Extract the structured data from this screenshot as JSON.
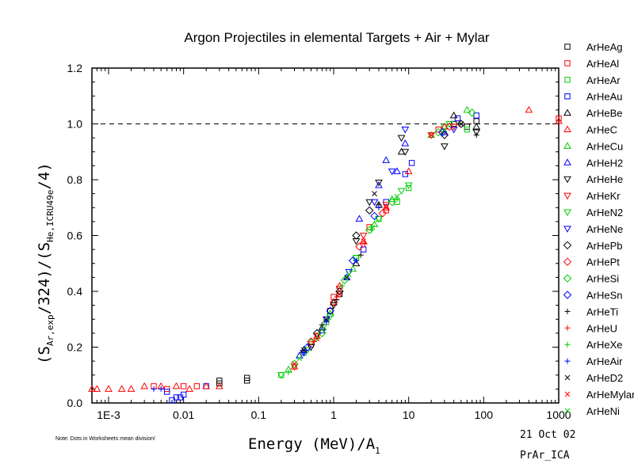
{
  "chart_data": {
    "type": "scatter",
    "title": "Argon Projectiles in elemental Targets + Air + Mylar",
    "xlabel": {
      "text": "Energy (MeV)/A",
      "sub": "1"
    },
    "ylabel": {
      "p1": "(S",
      "s1": "Ar,exp",
      "p2": "/324)/(S",
      "s2": "He,ICRU49e",
      "p3": "/4)"
    },
    "x_scale": "log",
    "xlim": [
      0.0006,
      1000
    ],
    "ylim": [
      0,
      1.2
    ],
    "x_ticks": [
      {
        "value": 0.001,
        "label": "1E-3"
      },
      {
        "value": 0.01,
        "label": "0.01"
      },
      {
        "value": 0.1,
        "label": "0.1"
      },
      {
        "value": 1,
        "label": "1"
      },
      {
        "value": 10,
        "label": "10"
      },
      {
        "value": 100,
        "label": "100"
      },
      {
        "value": 1000,
        "label": "1000"
      }
    ],
    "y_ticks": [
      {
        "value": 0.0,
        "label": "0.0"
      },
      {
        "value": 0.2,
        "label": "0.2"
      },
      {
        "value": 0.4,
        "label": "0.4"
      },
      {
        "value": 0.6,
        "label": "0.6"
      },
      {
        "value": 0.8,
        "label": "0.8"
      },
      {
        "value": 1.0,
        "label": "1.0"
      },
      {
        "value": 1.2,
        "label": "1.2"
      }
    ],
    "reference_line": {
      "y": 1.0,
      "style": "dashed"
    },
    "grid": false,
    "legend_position": "right",
    "series": [
      {
        "name": "ArHeAg",
        "marker": "square",
        "color": "#000000",
        "points": [
          [
            0.03,
            0.08
          ],
          [
            0.07,
            0.08
          ],
          [
            0.07,
            0.09
          ],
          [
            0.03,
            0.07
          ],
          [
            0.9,
            0.33
          ],
          [
            1.2,
            0.39
          ],
          [
            40,
            1.0
          ],
          [
            60,
            0.99
          ],
          [
            80,
            1.01
          ]
        ]
      },
      {
        "name": "ArHeAl",
        "marker": "square",
        "color": "#ff0000",
        "points": [
          [
            0.004,
            0.06
          ],
          [
            0.006,
            0.05
          ],
          [
            0.01,
            0.06
          ],
          [
            0.015,
            0.06
          ],
          [
            0.5,
            0.21
          ],
          [
            1.0,
            0.38
          ],
          [
            3.0,
            0.63
          ],
          [
            5.0,
            0.69
          ],
          [
            25,
            0.98
          ],
          [
            1000,
            1.02
          ]
        ]
      },
      {
        "name": "ArHeAr",
        "marker": "square",
        "color": "#00cc00",
        "points": [
          [
            0.2,
            0.1
          ],
          [
            0.4,
            0.18
          ],
          [
            0.8,
            0.29
          ],
          [
            2.0,
            0.52
          ],
          [
            4.0,
            0.66
          ],
          [
            7.0,
            0.72
          ],
          [
            10,
            0.77
          ],
          [
            30,
            0.99
          ],
          [
            60,
            0.98
          ]
        ]
      },
      {
        "name": "ArHeAu",
        "marker": "square",
        "color": "#0000ff",
        "points": [
          [
            0.007,
            0.01
          ],
          [
            0.008,
            0.02
          ],
          [
            0.009,
            0.02
          ],
          [
            0.01,
            0.03
          ],
          [
            0.006,
            0.04
          ],
          [
            0.02,
            0.06
          ],
          [
            2.5,
            0.55
          ],
          [
            5,
            0.72
          ],
          [
            9,
            0.82
          ],
          [
            11,
            0.86
          ],
          [
            80,
            1.03
          ],
          [
            45,
            1.02
          ]
        ]
      },
      {
        "name": "ArHeBe",
        "marker": "triangle-up",
        "color": "#000000",
        "points": [
          [
            0.4,
            0.19
          ],
          [
            0.7,
            0.27
          ],
          [
            1.0,
            0.36
          ],
          [
            2.0,
            0.5
          ],
          [
            4.0,
            0.71
          ],
          [
            8,
            0.9
          ],
          [
            40,
            1.03
          ],
          [
            80,
            0.99
          ]
        ]
      },
      {
        "name": "ArHeC",
        "marker": "triangle-up",
        "color": "#ff0000",
        "points": [
          [
            0.0006,
            0.05
          ],
          [
            0.0007,
            0.05
          ],
          [
            0.001,
            0.05
          ],
          [
            0.0015,
            0.05
          ],
          [
            0.002,
            0.05
          ],
          [
            0.003,
            0.06
          ],
          [
            0.005,
            0.06
          ],
          [
            0.008,
            0.06
          ],
          [
            0.012,
            0.05
          ],
          [
            0.02,
            0.06
          ],
          [
            0.03,
            0.06
          ],
          [
            0.3,
            0.13
          ],
          [
            0.6,
            0.24
          ],
          [
            1.2,
            0.42
          ],
          [
            2.5,
            0.58
          ],
          [
            5,
            0.7
          ],
          [
            10,
            0.83
          ],
          [
            30,
            0.99
          ],
          [
            400,
            1.05
          ],
          [
            1000,
            1.01
          ]
        ]
      },
      {
        "name": "ArHeCu",
        "marker": "triangle-up",
        "color": "#00cc00",
        "points": [
          [
            0.25,
            0.12
          ],
          [
            0.5,
            0.22
          ],
          [
            0.9,
            0.32
          ],
          [
            1.8,
            0.48
          ],
          [
            3.5,
            0.64
          ],
          [
            6,
            0.73
          ],
          [
            20,
            0.96
          ],
          [
            60,
            1.05
          ]
        ]
      },
      {
        "name": "ArHeH2",
        "marker": "triangle-up",
        "color": "#0000ff",
        "points": [
          [
            0.35,
            0.17
          ],
          [
            0.7,
            0.26
          ],
          [
            1.5,
            0.45
          ],
          [
            2.2,
            0.66
          ],
          [
            4,
            0.78
          ],
          [
            5,
            0.87
          ],
          [
            7,
            0.83
          ],
          [
            9,
            0.93
          ],
          [
            30,
            0.97
          ]
        ]
      },
      {
        "name": "ArHeHe",
        "marker": "triangle-down",
        "color": "#000000",
        "points": [
          [
            0.5,
            0.2
          ],
          [
            1.0,
            0.35
          ],
          [
            2.0,
            0.58
          ],
          [
            3.0,
            0.72
          ],
          [
            4.0,
            0.79
          ],
          [
            8,
            0.95
          ],
          [
            9,
            0.9
          ],
          [
            30,
            0.92
          ],
          [
            80,
            0.97
          ]
        ]
      },
      {
        "name": "ArHeKr",
        "marker": "triangle-down",
        "color": "#ff0000",
        "points": [
          [
            0.3,
            0.13
          ],
          [
            0.6,
            0.24
          ],
          [
            1.2,
            0.41
          ],
          [
            2.5,
            0.6
          ],
          [
            5,
            0.71
          ],
          [
            20,
            0.96
          ],
          [
            40,
            0.99
          ]
        ]
      },
      {
        "name": "ArHeN2",
        "marker": "triangle-down",
        "color": "#00cc00",
        "points": [
          [
            0.2,
            0.1
          ],
          [
            0.45,
            0.19
          ],
          [
            0.9,
            0.31
          ],
          [
            2.0,
            0.52
          ],
          [
            4,
            0.66
          ],
          [
            8,
            0.76
          ],
          [
            10,
            0.78
          ],
          [
            35,
            1.0
          ]
        ]
      },
      {
        "name": "ArHeNe",
        "marker": "triangle-down",
        "color": "#0000ff",
        "points": [
          [
            0.4,
            0.18
          ],
          [
            0.8,
            0.3
          ],
          [
            1.6,
            0.47
          ],
          [
            3.5,
            0.72
          ],
          [
            6,
            0.83
          ],
          [
            9,
            0.98
          ],
          [
            40,
            0.98
          ]
        ]
      },
      {
        "name": "ArHePb",
        "marker": "diamond",
        "color": "#000000",
        "points": [
          [
            0.6,
            0.25
          ],
          [
            1.2,
            0.4
          ],
          [
            2.0,
            0.6
          ],
          [
            3.0,
            0.69
          ],
          [
            30,
            0.96
          ],
          [
            50,
            1.0
          ]
        ]
      },
      {
        "name": "ArHePt",
        "marker": "diamond",
        "color": "#ff0000",
        "points": [
          [
            0.5,
            0.22
          ],
          [
            1.0,
            0.36
          ],
          [
            2.2,
            0.56
          ],
          [
            4.5,
            0.68
          ],
          [
            35,
            0.99
          ]
        ]
      },
      {
        "name": "ArHeSi",
        "marker": "diamond",
        "color": "#00cc00",
        "points": [
          [
            0.3,
            0.14
          ],
          [
            0.7,
            0.25
          ],
          [
            1.4,
            0.44
          ],
          [
            3.0,
            0.62
          ],
          [
            6,
            0.72
          ],
          [
            25,
            0.97
          ],
          [
            70,
            1.04
          ]
        ]
      },
      {
        "name": "ArHeSn",
        "marker": "diamond",
        "color": "#0000ff",
        "points": [
          [
            0.45,
            0.2
          ],
          [
            0.9,
            0.33
          ],
          [
            1.8,
            0.51
          ],
          [
            3.5,
            0.67
          ],
          [
            28,
            0.97
          ]
        ]
      },
      {
        "name": "ArHeTi",
        "marker": "plus",
        "color": "#000000",
        "points": [
          [
            0.7,
            0.28
          ],
          [
            1.1,
            0.37
          ],
          [
            2.3,
            0.53
          ],
          [
            4,
            0.71
          ],
          [
            80,
            0.96
          ]
        ]
      },
      {
        "name": "ArHeU",
        "marker": "plus",
        "color": "#ff0000",
        "points": [
          [
            0.55,
            0.22
          ],
          [
            1.1,
            0.38
          ],
          [
            2.6,
            0.57
          ]
        ]
      },
      {
        "name": "ArHeXe",
        "marker": "plus",
        "color": "#00cc00",
        "points": [
          [
            0.25,
            0.11
          ],
          [
            0.6,
            0.23
          ],
          [
            1.3,
            0.42
          ],
          [
            3.2,
            0.62
          ],
          [
            7,
            0.73
          ]
        ]
      },
      {
        "name": "ArHeAir",
        "marker": "plus",
        "color": "#0000ff",
        "points": [
          [
            0.004,
            0.05
          ],
          [
            0.005,
            0.05
          ],
          [
            0.4,
            0.18
          ],
          [
            0.8,
            0.29
          ],
          [
            2.0,
            0.51
          ],
          [
            4,
            0.7
          ]
        ]
      },
      {
        "name": "ArHeD2",
        "marker": "cross",
        "color": "#000000",
        "points": [
          [
            0.4,
            0.19
          ],
          [
            0.8,
            0.3
          ],
          [
            1.5,
            0.45
          ],
          [
            3.5,
            0.75
          ],
          [
            50,
            1.0
          ]
        ]
      },
      {
        "name": "ArHeMylar",
        "marker": "cross",
        "color": "#ff0000",
        "points": [
          [
            0.3,
            0.14
          ],
          [
            0.6,
            0.23
          ],
          [
            1.2,
            0.39
          ],
          [
            2.5,
            0.58
          ],
          [
            5,
            0.7
          ],
          [
            20,
            0.96
          ]
        ]
      },
      {
        "name": "ArHeNi",
        "marker": "cross",
        "color": "#00cc00",
        "points": [
          [
            0.35,
            0.16
          ],
          [
            0.75,
            0.27
          ],
          [
            1.6,
            0.46
          ],
          [
            3.3,
            0.63
          ],
          [
            7,
            0.74
          ],
          [
            30,
            0.98
          ]
        ]
      }
    ]
  },
  "annotations": {
    "note": "Note: Dots in Worksheets mean division!",
    "date": "21 Oct 02",
    "file": "PrAr_ICA"
  }
}
